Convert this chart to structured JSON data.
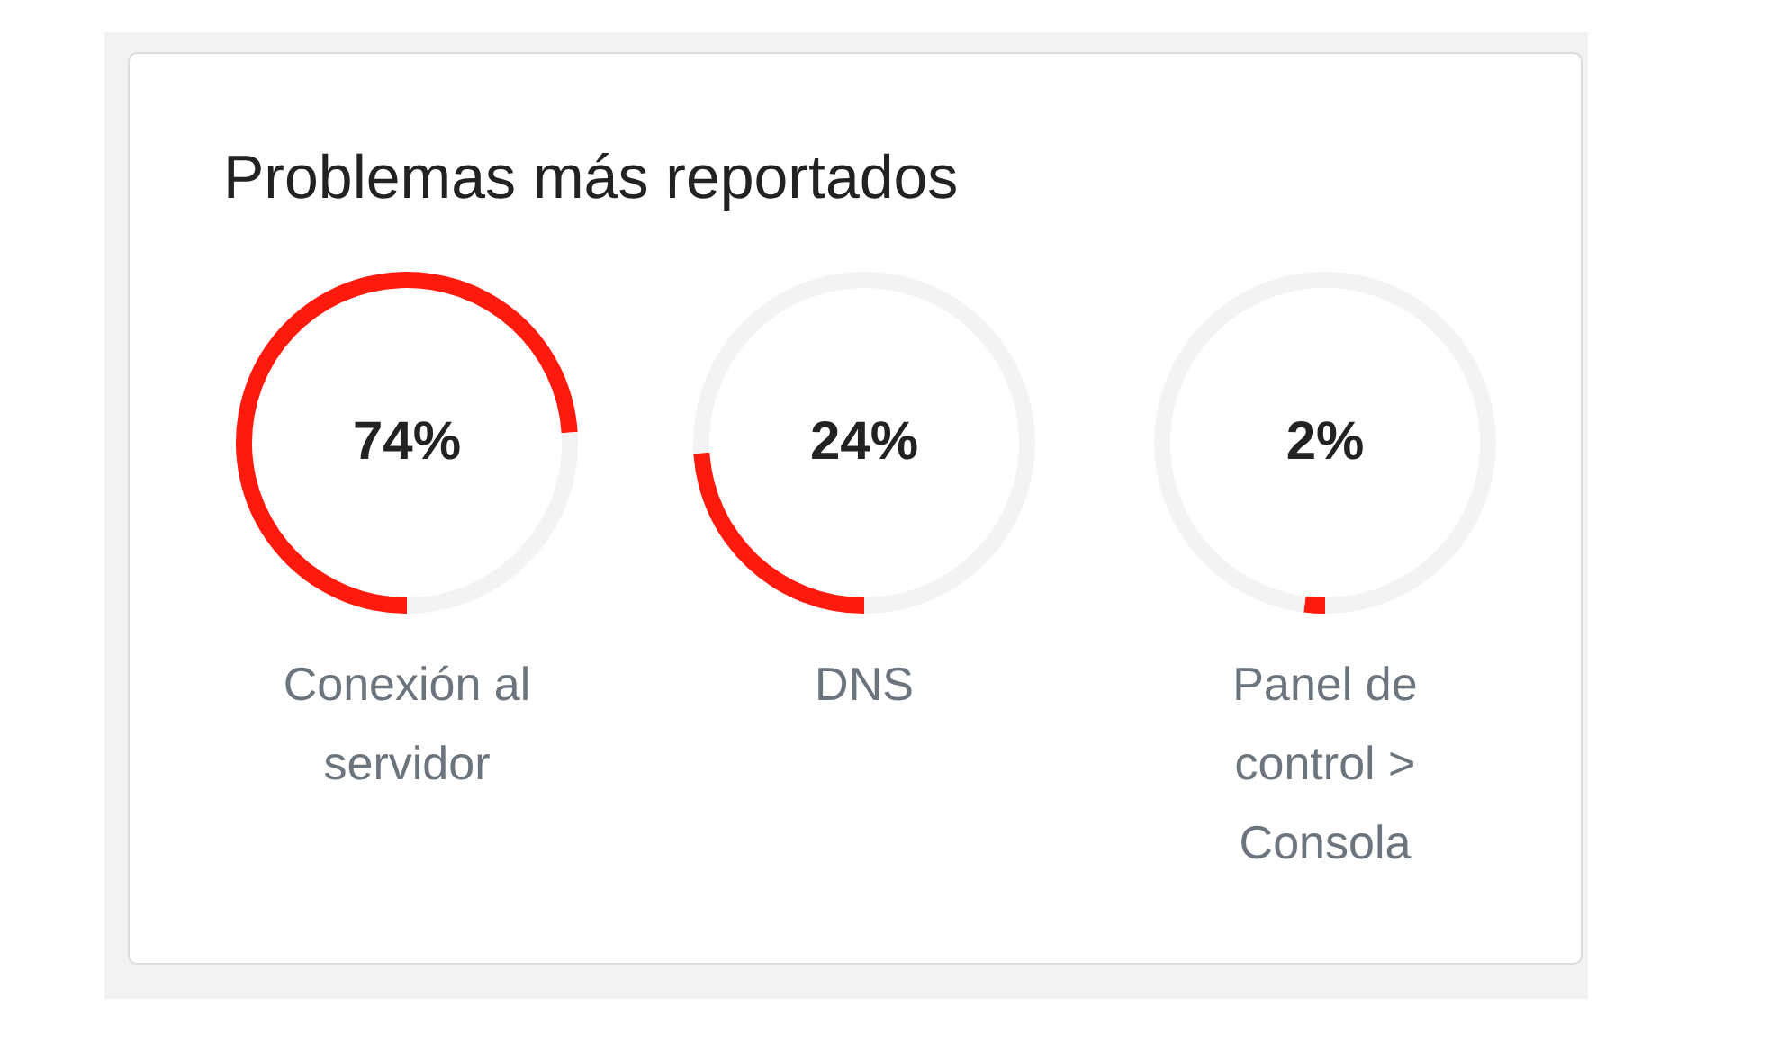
{
  "chart_data": [
    {
      "type": "donut",
      "title": "Problemas más reportados",
      "categories": [
        "Conexión al servidor",
        null
      ],
      "values": [
        74,
        26
      ],
      "colors": [
        "#ff1a0d",
        "#f1f3f5"
      ],
      "annotations": [
        "74%"
      ]
    },
    {
      "type": "donut",
      "categories": [
        "DNS",
        null
      ],
      "values": [
        24,
        76
      ],
      "colors": [
        "#ff1a0d",
        "#f1f3f5"
      ],
      "annotations": [
        "24%"
      ]
    },
    {
      "type": "donut",
      "categories": [
        "Panel de control > Consola",
        null
      ],
      "values": [
        2,
        98
      ],
      "colors": [
        "#ff1a0d",
        "#f1f3f5"
      ],
      "annotations": [
        "2%"
      ]
    }
  ]
}
